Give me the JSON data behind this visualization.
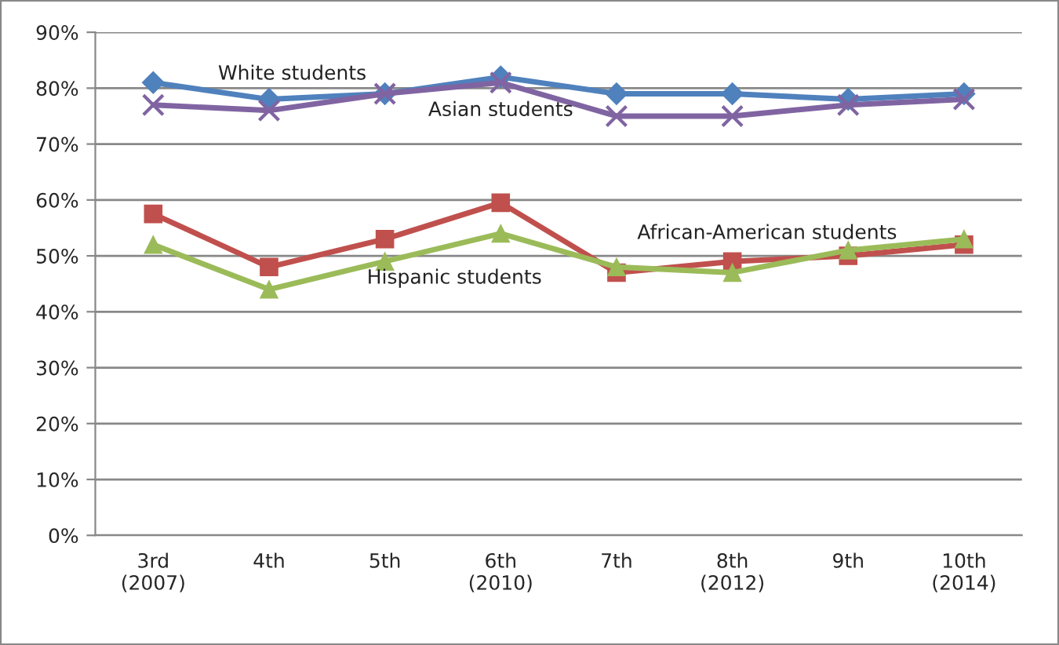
{
  "chart_data": {
    "type": "line",
    "categories": [
      "3rd\n(2007)",
      "4th",
      "5th",
      "6th\n(2010)",
      "7th",
      "8th\n(2012)",
      "9th",
      "10th\n(2014)"
    ],
    "series": [
      {
        "name": "White students",
        "color": "#4f81bd",
        "marker": "diamond",
        "values": [
          81,
          78,
          79,
          82,
          79,
          79,
          78,
          79
        ]
      },
      {
        "name": "Asian students",
        "color": "#8064a2",
        "marker": "cross",
        "values": [
          77,
          76,
          79,
          81,
          75,
          75,
          77,
          78
        ]
      },
      {
        "name": "African-American students",
        "color": "#c0504d",
        "marker": "square",
        "values": [
          57.5,
          48,
          53,
          59.5,
          47,
          49,
          50,
          52
        ]
      },
      {
        "name": "Hispanic students",
        "color": "#9bbb59",
        "marker": "triangle",
        "values": [
          52,
          44,
          49,
          54,
          48,
          47,
          51,
          53
        ]
      }
    ],
    "ylim": [
      0,
      90
    ],
    "yticks": [
      {
        "value": 0,
        "label": "0%"
      },
      {
        "value": 10,
        "label": "10%"
      },
      {
        "value": 20,
        "label": "20%"
      },
      {
        "value": 30,
        "label": "30%"
      },
      {
        "value": 40,
        "label": "40%"
      },
      {
        "value": 50,
        "label": "50%"
      },
      {
        "value": 60,
        "label": "60%"
      },
      {
        "value": 70,
        "label": "70%"
      },
      {
        "value": 80,
        "label": "80%"
      },
      {
        "value": 90,
        "label": "90%"
      }
    ],
    "grid": "y",
    "legend": false
  }
}
